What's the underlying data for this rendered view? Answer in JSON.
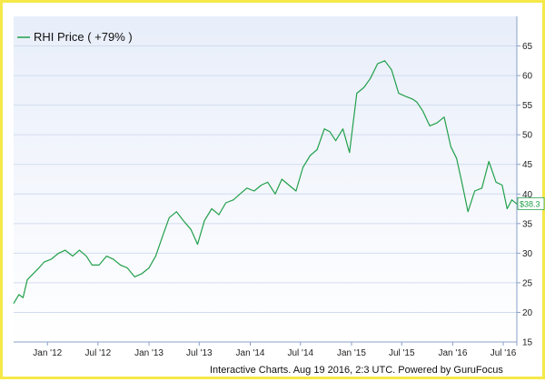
{
  "chart_data": {
    "type": "line",
    "title": "",
    "xlabel": "",
    "ylabel": "",
    "ylim": [
      15,
      70
    ],
    "y_ticks": [
      20,
      25,
      30,
      35,
      40,
      45,
      50,
      55,
      60,
      65
    ],
    "x_ticks": [
      {
        "label": "Jan '12",
        "date": "2012-01-01"
      },
      {
        "label": "Jul '12",
        "date": "2012-07-01"
      },
      {
        "label": "Jan '13",
        "date": "2013-01-01"
      },
      {
        "label": "Jul '13",
        "date": "2013-07-01"
      },
      {
        "label": "Jan '14",
        "date": "2014-01-01"
      },
      {
        "label": "Jul '14",
        "date": "2014-07-01"
      },
      {
        "label": "Jan '15",
        "date": "2015-01-01"
      },
      {
        "label": "Jul '15",
        "date": "2015-07-01"
      },
      {
        "label": "Jan '16",
        "date": "2016-01-01"
      },
      {
        "label": "Jul '16",
        "date": "2016-07-01"
      }
    ],
    "xlim": [
      "2011-09-01",
      "2016-08-19"
    ],
    "grid": "y",
    "legend_position": "top-left",
    "series": [
      {
        "name": "RHI Price ( +79% )",
        "color": "#22a04b",
        "x": [
          "2011-09-01",
          "2011-09-20",
          "2011-10-05",
          "2011-10-20",
          "2011-11-10",
          "2011-12-01",
          "2011-12-20",
          "2012-01-15",
          "2012-02-10",
          "2012-03-05",
          "2012-04-01",
          "2012-04-25",
          "2012-05-20",
          "2012-06-10",
          "2012-07-05",
          "2012-08-01",
          "2012-08-25",
          "2012-09-20",
          "2012-10-15",
          "2012-11-10",
          "2012-12-05",
          "2013-01-01",
          "2013-01-25",
          "2013-02-20",
          "2013-03-15",
          "2013-04-10",
          "2013-05-05",
          "2013-06-01",
          "2013-06-25",
          "2013-07-20",
          "2013-08-15",
          "2013-09-10",
          "2013-10-05",
          "2013-11-01",
          "2013-11-25",
          "2013-12-20",
          "2014-01-15",
          "2014-02-10",
          "2014-03-05",
          "2014-04-01",
          "2014-04-25",
          "2014-05-20",
          "2014-06-15",
          "2014-07-10",
          "2014-08-05",
          "2014-08-30",
          "2014-09-25",
          "2014-10-15",
          "2014-11-05",
          "2014-12-01",
          "2014-12-25",
          "2015-01-20",
          "2015-02-15",
          "2015-03-10",
          "2015-04-05",
          "2015-05-01",
          "2015-05-25",
          "2015-06-20",
          "2015-07-15",
          "2015-08-10",
          "2015-08-25",
          "2015-09-15",
          "2015-10-10",
          "2015-11-05",
          "2015-12-01",
          "2015-12-25",
          "2016-01-15",
          "2016-02-05",
          "2016-02-25",
          "2016-03-20",
          "2016-04-15",
          "2016-05-10",
          "2016-06-05",
          "2016-06-27",
          "2016-07-15",
          "2016-08-01",
          "2016-08-19"
        ],
        "values": [
          21.5,
          23.0,
          22.5,
          25.5,
          26.5,
          27.5,
          28.5,
          29.0,
          30.0,
          30.5,
          29.5,
          30.5,
          29.5,
          28.0,
          28.0,
          29.5,
          29.0,
          28.0,
          27.5,
          26.0,
          26.5,
          27.5,
          29.5,
          33.0,
          36.0,
          37.0,
          35.5,
          34.0,
          31.5,
          35.5,
          37.5,
          36.5,
          38.5,
          39.0,
          40.0,
          41.0,
          40.5,
          41.5,
          42.0,
          40.0,
          42.5,
          41.5,
          40.5,
          44.5,
          46.5,
          47.5,
          51.0,
          50.5,
          49.0,
          51.0,
          47.0,
          57.0,
          58.0,
          59.5,
          62.0,
          62.5,
          61.0,
          57.0,
          56.5,
          56.0,
          55.5,
          54.0,
          51.5,
          52.0,
          53.0,
          48.0,
          46.0,
          41.5,
          37.0,
          40.5,
          41.0,
          45.5,
          42.0,
          41.5,
          37.5,
          39.0,
          38.3
        ]
      }
    ],
    "last_value_label": "$38.3",
    "footer": "Interactive Charts. Aug 19 2016, 2:3 UTC. Powered by GuruFocus"
  }
}
